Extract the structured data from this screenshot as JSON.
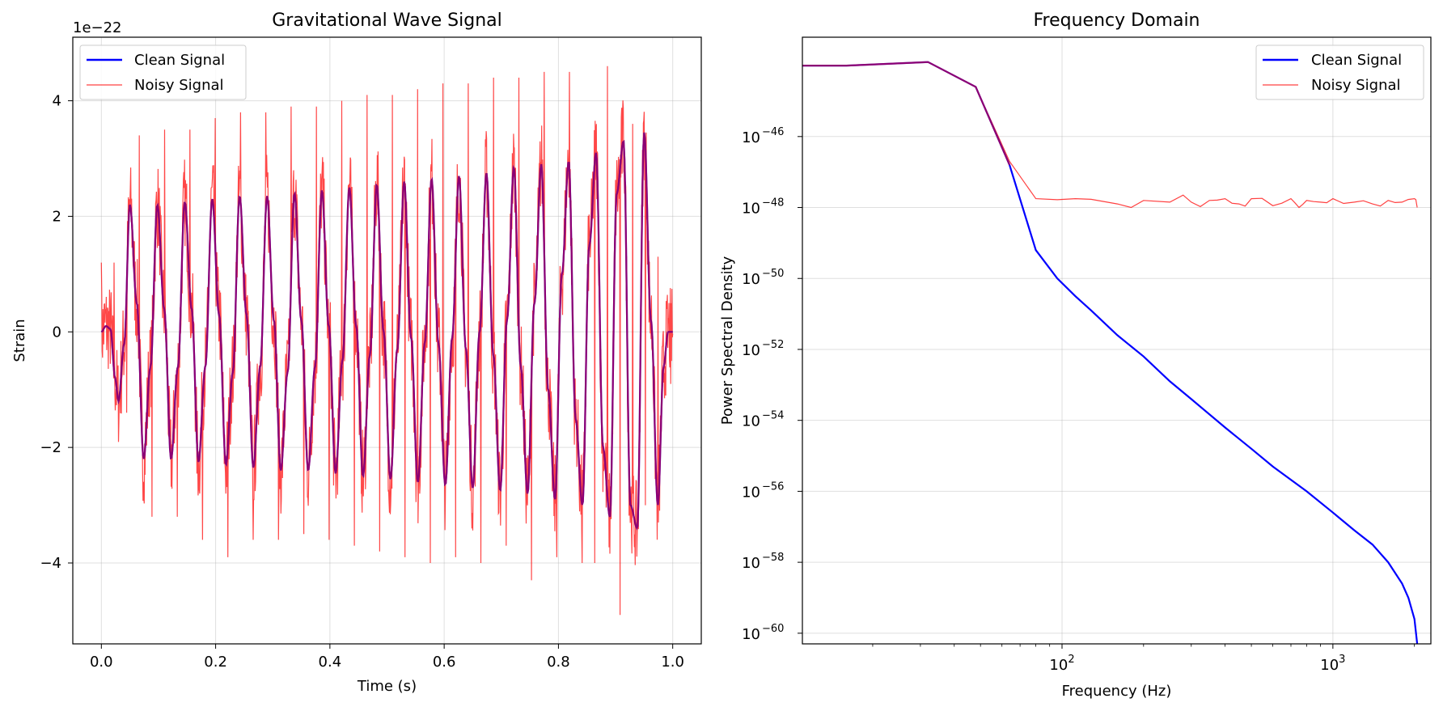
{
  "colors": {
    "clean": "#0000ff",
    "noisy": "#ff0000",
    "grid": "#b0b0b0"
  },
  "chart_data": [
    {
      "type": "line",
      "title": "Gravitational Wave Signal",
      "xlabel": "Time (s)",
      "ylabel": "Strain",
      "offset_label": "1e−22",
      "xlim": [
        -0.05,
        1.05
      ],
      "ylim": [
        -5.4,
        5.1
      ],
      "x_ticks": [
        0.0,
        0.2,
        0.4,
        0.6,
        0.8,
        1.0
      ],
      "x_tick_labels": [
        "0.0",
        "0.2",
        "0.4",
        "0.6",
        "0.8",
        "1.0"
      ],
      "y_ticks": [
        -4,
        -2,
        0,
        2,
        4
      ],
      "y_tick_labels": [
        "−4",
        "−2",
        "0",
        "2",
        "4"
      ],
      "grid": true,
      "legend": "upper left",
      "series": [
        {
          "name": "Clean Signal",
          "color": "#0000ff",
          "x": [
            0.0,
            0.008,
            0.016,
            0.024,
            0.03,
            0.04,
            0.05,
            0.062,
            0.074,
            0.086,
            0.098,
            0.11,
            0.122,
            0.134,
            0.146,
            0.158,
            0.17,
            0.182,
            0.194,
            0.206,
            0.218,
            0.23,
            0.242,
            0.254,
            0.266,
            0.278,
            0.29,
            0.302,
            0.314,
            0.326,
            0.338,
            0.35,
            0.362,
            0.374,
            0.386,
            0.398,
            0.41,
            0.422,
            0.434,
            0.446,
            0.458,
            0.47,
            0.482,
            0.494,
            0.506,
            0.518,
            0.53,
            0.542,
            0.554,
            0.566,
            0.578,
            0.59,
            0.602,
            0.614,
            0.626,
            0.638,
            0.65,
            0.662,
            0.674,
            0.686,
            0.698,
            0.71,
            0.722,
            0.734,
            0.746,
            0.758,
            0.77,
            0.782,
            0.794,
            0.806,
            0.818,
            0.83,
            0.842,
            0.854,
            0.866,
            0.878,
            0.89,
            0.902,
            0.914,
            0.926,
            0.938,
            0.95,
            0.962,
            0.974,
            0.984,
            0.992,
            1.0
          ],
          "y": [
            0.0,
            0.1,
            0.05,
            -0.8,
            -1.2,
            -0.2,
            2.2,
            0.5,
            -2.2,
            -0.6,
            2.2,
            0.4,
            -2.2,
            -0.6,
            2.25,
            0.4,
            -2.25,
            -0.6,
            2.3,
            0.3,
            -2.3,
            -0.7,
            2.35,
            0.3,
            -2.35,
            -0.6,
            2.35,
            0.2,
            -2.4,
            -0.7,
            2.4,
            0.2,
            -2.4,
            -0.6,
            2.45,
            0.1,
            -2.45,
            -0.5,
            2.5,
            0.1,
            -2.5,
            -0.4,
            2.55,
            0.0,
            -2.55,
            -0.3,
            2.6,
            -0.1,
            -2.6,
            -0.2,
            2.65,
            -0.2,
            -2.65,
            -0.1,
            2.7,
            -0.3,
            -2.7,
            0.0,
            2.75,
            -0.4,
            -2.75,
            0.2,
            2.85,
            -0.6,
            -2.8,
            0.5,
            2.9,
            -1.0,
            -2.9,
            1.0,
            2.95,
            -1.5,
            -3.0,
            1.5,
            3.1,
            -2.0,
            -3.2,
            2.4,
            3.3,
            -3.0,
            -3.4,
            3.45,
            0.2,
            -3.0,
            -0.6,
            0.0,
            0.0
          ]
        },
        {
          "name": "Noisy Signal",
          "color": "#ff0000",
          "y_peaks": [
            1.2,
            -1.4,
            3.4,
            -3.2,
            3.5,
            -3.2,
            3.5,
            -3.6,
            3.7,
            -3.9,
            3.8,
            -3.6,
            3.8,
            -3.6,
            3.9,
            -3.5,
            3.9,
            -3.6,
            4.0,
            -3.7,
            4.1,
            -3.8,
            4.1,
            -3.9,
            4.2,
            -4.0,
            4.3,
            -3.9,
            4.3,
            -4.0,
            4.4,
            -3.7,
            4.4,
            -4.3,
            4.5,
            -3.9,
            4.5,
            -4.0,
            4.6,
            -4.9,
            3.6,
            -3.0,
            1.3,
            -0.9
          ]
        }
      ]
    },
    {
      "type": "line",
      "title": "Frequency Domain",
      "xlabel": "Frequency (Hz)",
      "ylabel": "Power Spectral Density",
      "x_scale": "log",
      "y_scale": "log",
      "xlim": [
        11,
        2300
      ],
      "ylim": [
        -60.3,
        -43.2
      ],
      "x_ticks": [
        100,
        1000
      ],
      "x_tick_labels": [
        "10",
        "10"
      ],
      "x_tick_exponents": [
        "2",
        "3"
      ],
      "y_ticks": [
        -60,
        -58,
        -56,
        -54,
        -52,
        -50,
        -48,
        -46
      ],
      "y_tick_labels": [
        "10",
        "10",
        "10",
        "10",
        "10",
        "10",
        "10",
        "10"
      ],
      "y_tick_exponents": [
        "−60",
        "−58",
        "−56",
        "−54",
        "−52",
        "−50",
        "−48",
        "−46"
      ],
      "grid": true,
      "legend": "upper right",
      "series": [
        {
          "name": "Clean Signal",
          "color": "#0000ff",
          "x": [
            11,
            16,
            32,
            48,
            64,
            80,
            96,
            112,
            128,
            160,
            200,
            250,
            300,
            400,
            500,
            600,
            800,
            1000,
            1200,
            1400,
            1600,
            1800,
            1900,
            2000,
            2048
          ],
          "y": [
            -44.0,
            -44.0,
            -43.9,
            -44.6,
            -46.8,
            -49.2,
            -50.0,
            -50.5,
            -50.9,
            -51.6,
            -52.2,
            -52.9,
            -53.4,
            -54.2,
            -54.8,
            -55.3,
            -56.0,
            -56.6,
            -57.1,
            -57.5,
            -58.0,
            -58.6,
            -59.0,
            -59.6,
            -60.3
          ]
        },
        {
          "name": "Noisy Signal",
          "color": "#ff0000",
          "x": [
            11,
            16,
            32,
            48,
            64,
            80,
            96,
            112,
            128,
            160,
            180,
            200,
            250,
            280,
            300,
            350,
            400,
            450,
            500,
            600,
            700,
            750,
            800,
            900,
            1000,
            1200,
            1400,
            1600,
            1800,
            2000,
            2048
          ],
          "y": [
            -44.0,
            -44.0,
            -43.9,
            -44.6,
            -46.7,
            -47.75,
            -47.78,
            -47.75,
            -47.77,
            -47.9,
            -48.0,
            -47.8,
            -47.85,
            -47.65,
            -47.85,
            -47.8,
            -47.75,
            -47.9,
            -47.75,
            -47.95,
            -47.75,
            -48.0,
            -47.8,
            -47.85,
            -47.75,
            -47.85,
            -47.9,
            -47.8,
            -47.85,
            -47.75,
            -48.0
          ]
        }
      ]
    }
  ]
}
